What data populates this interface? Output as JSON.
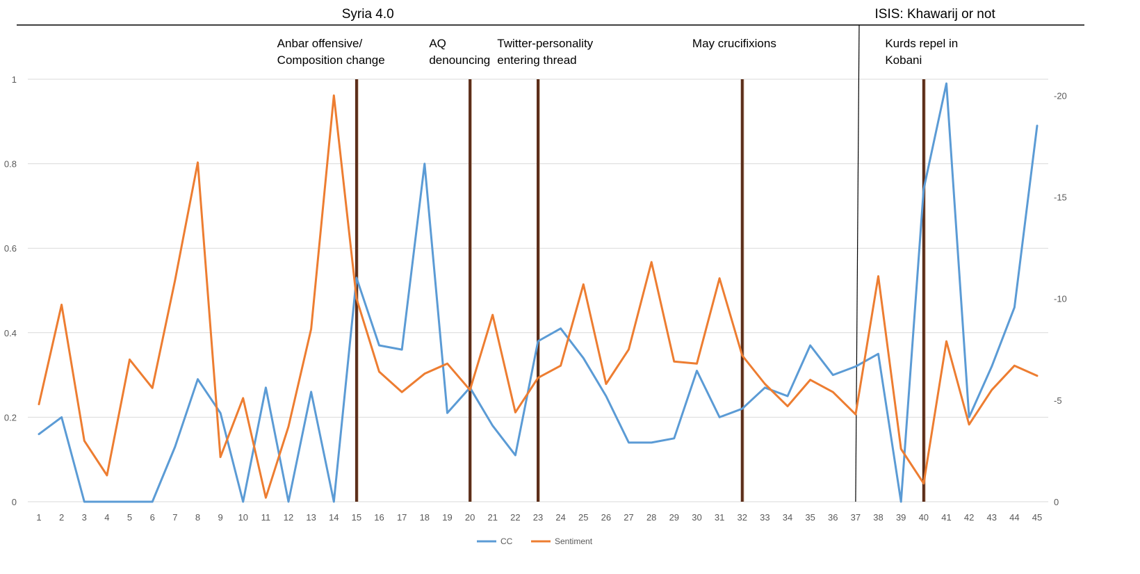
{
  "chart_data": {
    "type": "line",
    "x": [
      1,
      2,
      3,
      4,
      5,
      6,
      7,
      8,
      9,
      10,
      11,
      12,
      13,
      14,
      15,
      16,
      17,
      18,
      19,
      20,
      21,
      22,
      23,
      24,
      25,
      26,
      27,
      28,
      29,
      30,
      31,
      32,
      33,
      34,
      35,
      36,
      37,
      38,
      39,
      40,
      41,
      42,
      43,
      44,
      45
    ],
    "left_axis": {
      "ylim": [
        0,
        1
      ],
      "ticks": [
        0,
        0.2,
        0.4,
        0.6,
        0.8,
        1
      ]
    },
    "right_axis": {
      "ylim": [
        0,
        -20.8
      ],
      "ticks": [
        0,
        -5,
        -10,
        -15,
        -20
      ]
    },
    "grid": true,
    "series": [
      {
        "name": "CC",
        "axis": "left",
        "color": "#5b9bd5",
        "values": [
          0.16,
          0.2,
          0.0,
          0.0,
          0.0,
          0.0,
          0.13,
          0.29,
          0.21,
          0.0,
          0.27,
          0.0,
          0.26,
          0.0,
          0.53,
          0.37,
          0.36,
          0.8,
          0.21,
          0.27,
          0.18,
          0.11,
          0.38,
          0.41,
          0.34,
          0.25,
          0.14,
          0.14,
          0.15,
          0.31,
          0.2,
          0.22,
          0.27,
          0.25,
          0.37,
          0.3,
          0.32,
          0.35,
          0.0,
          0.74,
          0.99,
          0.2,
          0.32,
          0.46,
          0.89
        ]
      },
      {
        "name": "Sentiment",
        "axis": "right",
        "color": "#ed7d31",
        "values": [
          -4.8,
          -9.7,
          -3.0,
          -1.3,
          -7.0,
          -5.6,
          -10.9,
          -16.7,
          -2.2,
          -5.1,
          -0.2,
          -3.7,
          -8.5,
          -20.0,
          -10.0,
          -6.4,
          -5.4,
          -6.3,
          -6.8,
          -5.5,
          -9.2,
          -4.4,
          -6.1,
          -6.7,
          -10.7,
          -5.8,
          -7.5,
          -11.8,
          -6.9,
          -6.8,
          -11.0,
          -7.2,
          -5.8,
          -4.7,
          -6.0,
          -5.4,
          -4.3,
          -11.1,
          -2.6,
          -0.9,
          -7.9,
          -3.8,
          -5.5,
          -6.7,
          -6.2
        ]
      }
    ],
    "event_lines": [
      15,
      20,
      23,
      32,
      40
    ],
    "section_divider": 37,
    "sections": [
      {
        "label": "Syria 4.0",
        "center_x": 15.5
      },
      {
        "label": "ISIS: Khawarij or not",
        "center_x": 40.5
      }
    ],
    "annotations": [
      {
        "lines": [
          "Anbar offensive/",
          "Composition change"
        ],
        "x": 11.5
      },
      {
        "lines": [
          "AQ",
          "denouncing"
        ],
        "x": 18.2
      },
      {
        "lines": [
          "Twitter-personality",
          "entering thread"
        ],
        "x": 21.2
      },
      {
        "lines": [
          "May crucifixions"
        ],
        "x": 29.8
      },
      {
        "lines": [
          "Kurds repel in",
          "Kobani"
        ],
        "x": 38.3
      }
    ],
    "legend": {
      "placement": "bottom-center",
      "entries": [
        "CC",
        "Sentiment"
      ]
    }
  }
}
